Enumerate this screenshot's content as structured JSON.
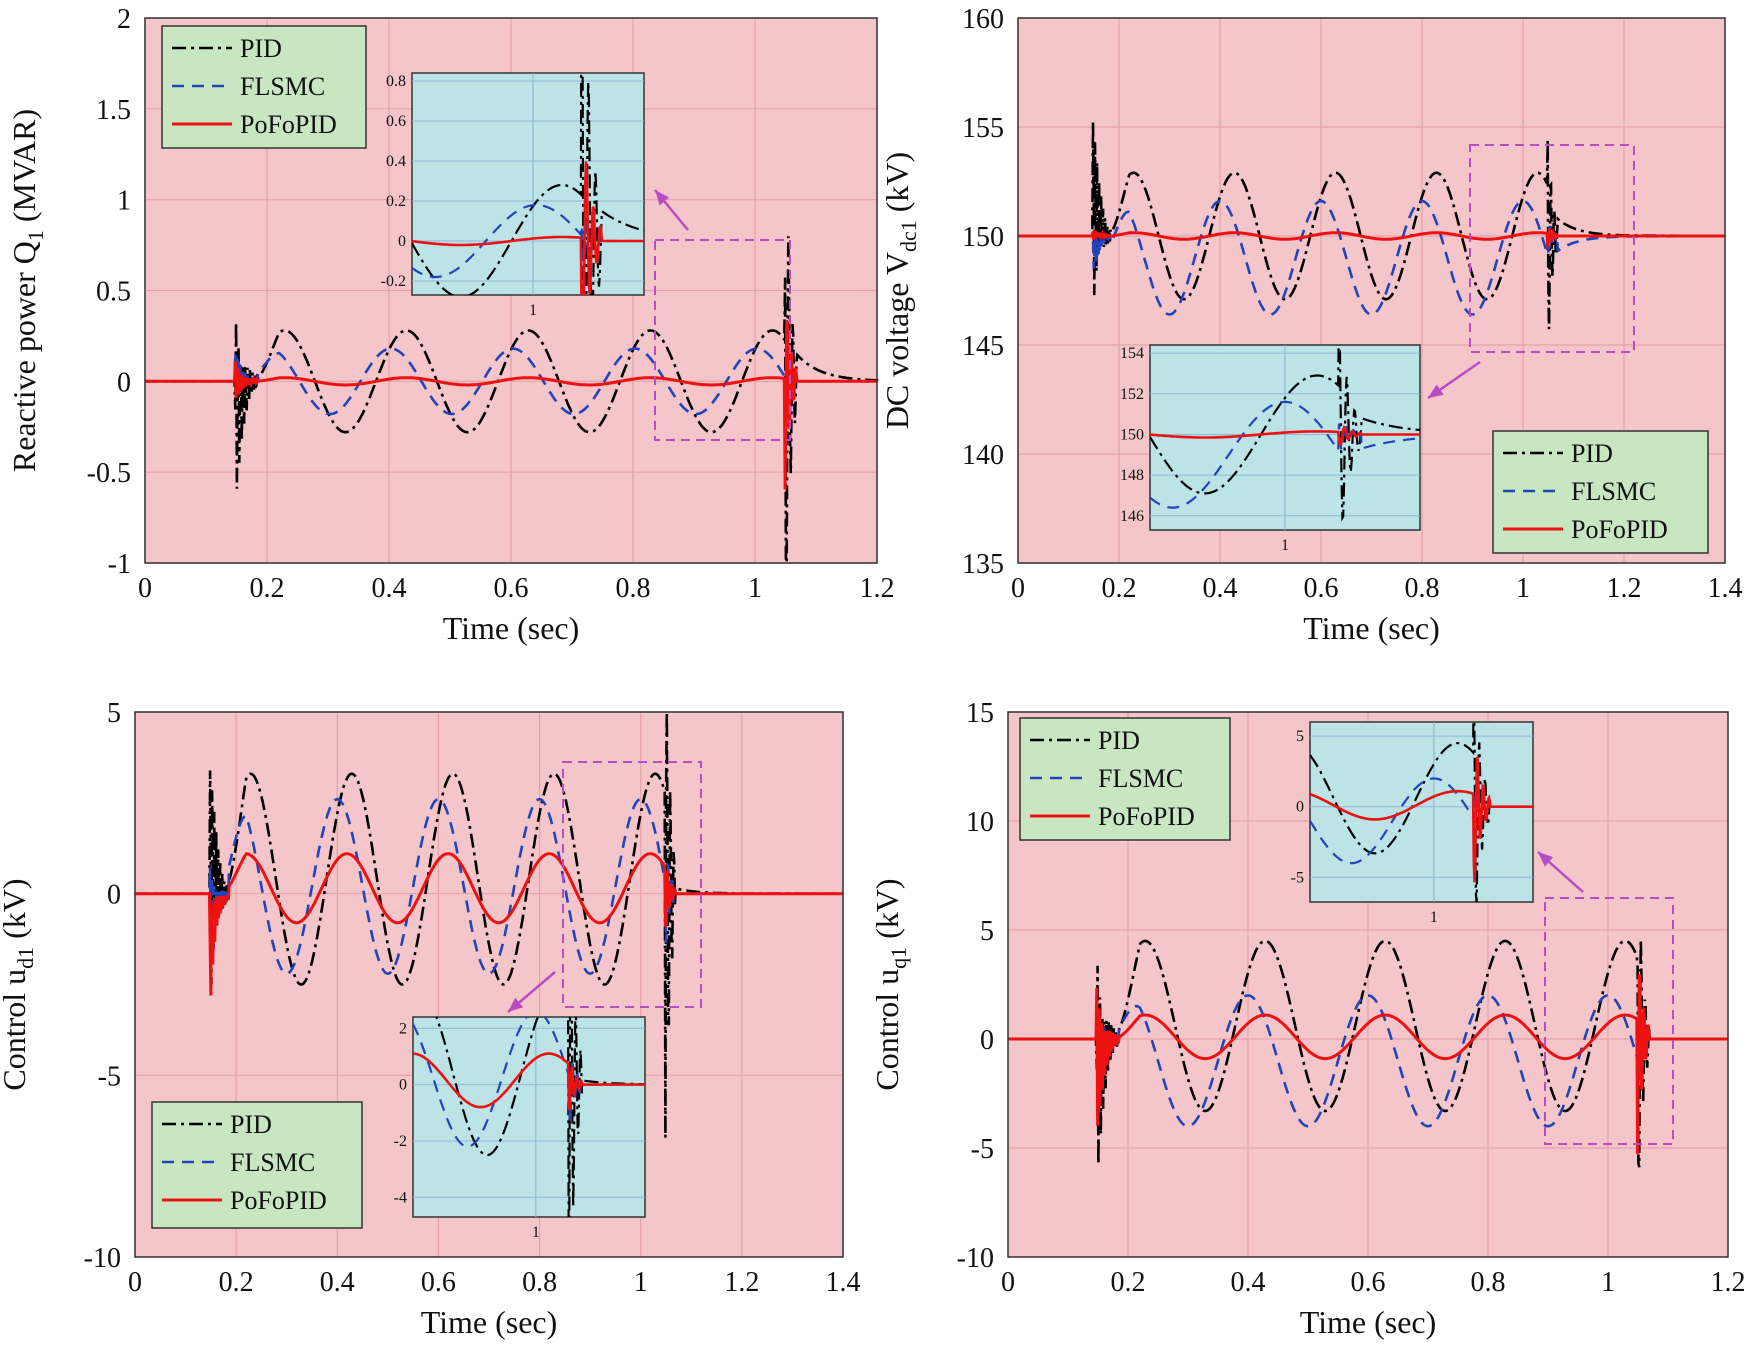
{
  "colors": {
    "panel_bg": "#F4C6CA",
    "inset_bg": "#BCE3E6",
    "legend_bg": "#C8E6C2",
    "grid": "#E4A2A8",
    "inset_grid": "#8FB8DA",
    "dashbox": "#B84CC4",
    "arrow": "#B84CC4"
  },
  "chart_data": [
    {
      "type": "line",
      "xlabel": "Time (sec)",
      "ylabel": "Reactive power Q",
      "ylabel_sub": "1",
      "ylabel_unit": "(MVAR)",
      "xlim": [
        0,
        1.2
      ],
      "ylim": [
        -1,
        2
      ],
      "xticks": [
        "0",
        "0.2",
        "0.4",
        "0.6",
        "0.8",
        "1",
        "1.2"
      ],
      "yticks": [
        "-1",
        "-0.5",
        "0",
        "0.5",
        "1",
        "1.5",
        "2"
      ],
      "grid": true,
      "legend": "top-left",
      "fault_times": [
        0.15,
        1.05
      ],
      "series": [
        {
          "name": "PID",
          "color": "#000000",
          "dash": "dashdot",
          "base": 0,
          "amp": 0.28,
          "phase": 0,
          "spike_a": 0.47,
          "spike_b": -0.78,
          "spike_end": 1.85
        },
        {
          "name": "FLSMC",
          "color": "#2244BB",
          "dash": "dash",
          "base": 0,
          "amp": 0.18,
          "phase": 0.8,
          "spike_a": 0.18,
          "spike_b": -0.1,
          "spike_end": 0.2
        },
        {
          "name": "PoFoPID",
          "color": "#EE1111",
          "dash": "solid",
          "base": 0,
          "amp": 0.02,
          "phase": 0,
          "spike_a": 0.12,
          "spike_b": -0.12,
          "spike_end": 0.7
        }
      ],
      "inset": {
        "xtick": "1",
        "yticks": [
          "-0.2",
          "0",
          "0.2",
          "0.4",
          "0.6",
          "0.8"
        ]
      }
    },
    {
      "type": "line",
      "xlabel": "Time (sec)",
      "ylabel": "DC voltage V",
      "ylabel_sub": "dc1",
      "ylabel_unit": "(kV)",
      "xlim": [
        0,
        1.4
      ],
      "ylim": [
        135,
        160
      ],
      "xticks": [
        "0",
        "0.2",
        "0.4",
        "0.6",
        "0.8",
        "1",
        "1.2",
        "1.4"
      ],
      "yticks": [
        "135",
        "140",
        "145",
        "150",
        "155",
        "160"
      ],
      "grid": true,
      "legend": "bottom-right",
      "fault_times": [
        0.15,
        1.05
      ],
      "series": [
        {
          "name": "PID",
          "color": "#000000",
          "dash": "dashdot",
          "base": 150,
          "amp": 2.9,
          "phase": 0,
          "spike_a": 157,
          "spike_b": 146,
          "spike_end": 156.5
        },
        {
          "name": "FLSMC",
          "color": "#2244BB",
          "dash": "dash",
          "base": 149,
          "amp": 2.6,
          "phase": 0.9,
          "spike_a": 150,
          "spike_b": 148,
          "spike_end": 151
        },
        {
          "name": "PoFoPID",
          "color": "#EE1111",
          "dash": "solid",
          "base": 150,
          "amp": 0.15,
          "phase": 0,
          "spike_a": 150.4,
          "spike_b": 149.8,
          "spike_end": 150.6
        }
      ],
      "inset": {
        "xtick": "1",
        "yticks": [
          "146",
          "148",
          "150",
          "152",
          "154"
        ]
      }
    },
    {
      "type": "line",
      "xlabel": "Time (sec)",
      "ylabel": "Control u",
      "ylabel_sub": "d1",
      "ylabel_unit": "(kV)",
      "xlim": [
        0,
        1.4
      ],
      "ylim": [
        -10,
        5
      ],
      "xticks": [
        "0",
        "0.2",
        "0.4",
        "0.6",
        "0.8",
        "1",
        "1.2",
        "1.4"
      ],
      "yticks": [
        "-10",
        "-5",
        "0",
        "5"
      ],
      "grid": true,
      "legend": "bottom-left",
      "fault_times": [
        0.15,
        1.05
      ],
      "series": [
        {
          "name": "PID",
          "color": "#000000",
          "dash": "dashdot",
          "base": 0.4,
          "amp": 2.9,
          "phase": 0,
          "spike_a": 4.7,
          "spike_b": -3.6,
          "spike_end": -10
        },
        {
          "name": "FLSMC",
          "color": "#2244BB",
          "dash": "dash",
          "base": 0.2,
          "amp": 2.4,
          "phase": 0.9,
          "spike_a": 0.8,
          "spike_b": -2.6,
          "spike_end": 1.8
        },
        {
          "name": "PoFoPID",
          "color": "#EE1111",
          "dash": "solid",
          "base": 0.15,
          "amp": 0.95,
          "phase": 0.3,
          "spike_a": -0.3,
          "spike_b": -3.3,
          "spike_end": 1.1
        }
      ],
      "inset": {
        "xtick": "1",
        "yticks": [
          "-4",
          "-2",
          "0",
          "2"
        ]
      }
    },
    {
      "type": "line",
      "xlabel": "Time (sec)",
      "ylabel": "Control u",
      "ylabel_sub": "q1",
      "ylabel_unit": "(kV)",
      "xlim": [
        0,
        1.2
      ],
      "ylim": [
        -10,
        15
      ],
      "xticks": [
        "0",
        "0.2",
        "0.4",
        "0.6",
        "0.8",
        "1",
        "1.2"
      ],
      "yticks": [
        "-10",
        "-5",
        "0",
        "5",
        "10",
        "15"
      ],
      "grid": true,
      "legend": "top-left",
      "fault_times": [
        0.15,
        1.05
      ],
      "series": [
        {
          "name": "PID",
          "color": "#000000",
          "dash": "dashdot",
          "base": 0.6,
          "amp": 3.9,
          "phase": 0,
          "spike_a": 4.8,
          "spike_b": -7.6,
          "spike_end": 10.6
        },
        {
          "name": "FLSMC",
          "color": "#2244BB",
          "dash": "dash",
          "base": -1.0,
          "amp": 3.0,
          "phase": 0.9,
          "spike_a": 1.5,
          "spike_b": -4.8,
          "spike_end": 2.5
        },
        {
          "name": "PoFoPID",
          "color": "#EE1111",
          "dash": "solid",
          "base": 0.1,
          "amp": 1.0,
          "phase": 0,
          "spike_a": 2.7,
          "spike_b": -5.0,
          "spike_end": 6.2
        }
      ],
      "inset": {
        "xtick": "1",
        "yticks": [
          "-5",
          "0",
          "5"
        ]
      }
    }
  ]
}
